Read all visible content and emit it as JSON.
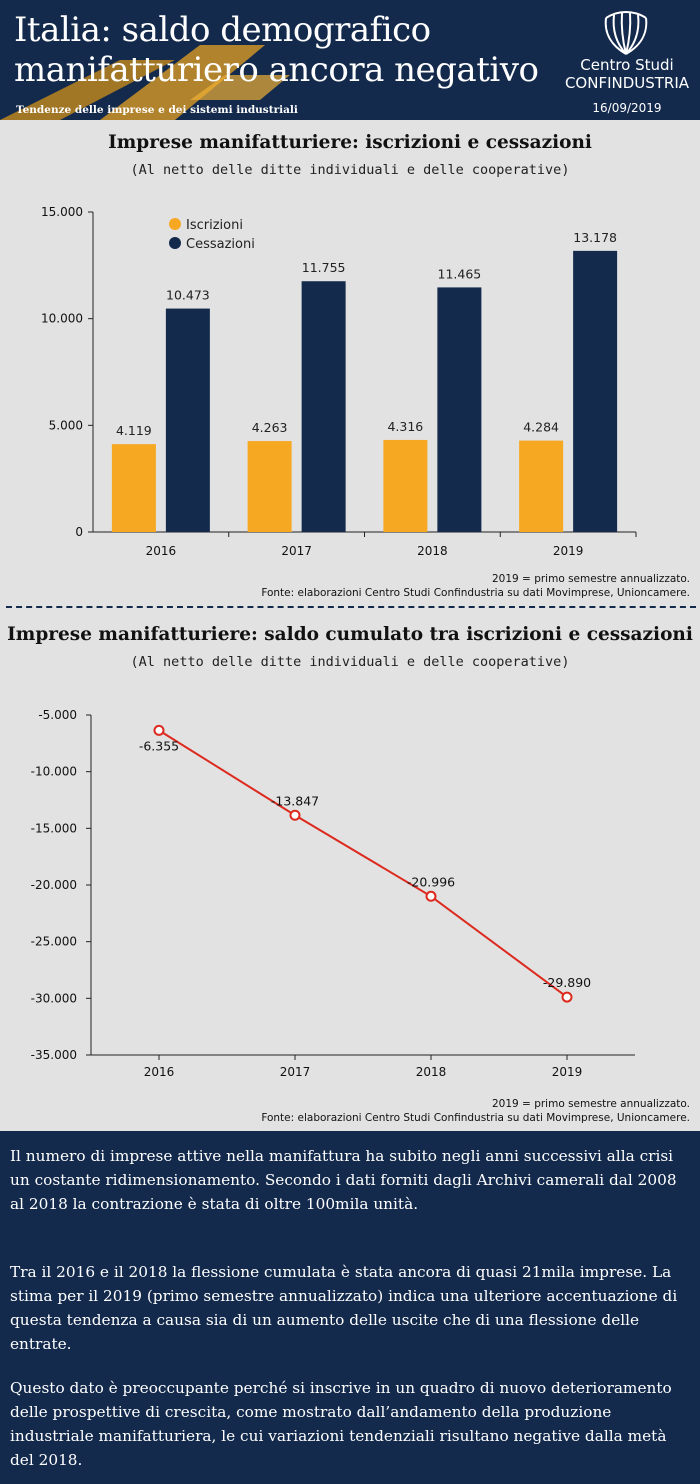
{
  "header": {
    "title": "Italia: saldo demografico manifatturiero ancora negativo",
    "subtitle": "Tendenze delle imprese e dei sistemi industriali",
    "logo_line1": "Centro Studi",
    "logo_line2": "CONFINDUSTRIA",
    "date": "16/09/2019"
  },
  "colors": {
    "navy": "#132a4d",
    "orange": "#f6a823",
    "line_red": "#dc2a1e",
    "background": "#e2e2e2"
  },
  "icons": {
    "logo": "confindustria-shell-icon"
  },
  "chart1": {
    "title": "Imprese manifatturiere: iscrizioni e cessazioni",
    "subtitle": "(Al netto delle ditte individuali e delle cooperative)",
    "note_line1": "2019 = primo semestre annualizzato.",
    "note_line2": "Fonte: elaborazioni Centro Studi Confindustria su dati Movimprese, Unioncamere."
  },
  "chart2": {
    "title": "Imprese manifatturiere: saldo cumulato tra iscrizioni e cessazioni",
    "subtitle": "(Al netto delle ditte individuali e delle cooperative)",
    "note_line1": "2019 = primo semestre annualizzato.",
    "note_line2": "Fonte: elaborazioni Centro Studi Confindustria su dati Movimprese, Unioncamere."
  },
  "chart_data": [
    {
      "type": "bar",
      "categories": [
        "2016",
        "2017",
        "2018",
        "2019"
      ],
      "series": [
        {
          "name": "Iscrizioni",
          "values": [
            4119,
            4263,
            4316,
            4284
          ],
          "labels": [
            "4.119",
            "4.263",
            "4.316",
            "4.284"
          ],
          "color": "#f6a823"
        },
        {
          "name": "Cessazioni",
          "values": [
            10473,
            11755,
            11465,
            13178
          ],
          "labels": [
            "10.473",
            "11.755",
            "11.465",
            "13.178"
          ],
          "color": "#132a4d"
        }
      ],
      "ylim": [
        0,
        15000
      ],
      "yticks": [
        0,
        5000,
        10000,
        15000
      ],
      "ytick_labels": [
        "0",
        "5.000",
        "10.000",
        "15.000"
      ],
      "legend_position": "top-left",
      "grid": false
    },
    {
      "type": "line",
      "x": [
        "2016",
        "2017",
        "2018",
        "2019"
      ],
      "series": [
        {
          "values": [
            -6355,
            -13847,
            -20996,
            -29890
          ],
          "labels": [
            "-6.355",
            "-13.847",
            "-20.996",
            "-29.890"
          ],
          "color": "#dc2a1e"
        }
      ],
      "ylim": [
        -35000,
        -5000
      ],
      "yticks": [
        -5000,
        -10000,
        -15000,
        -20000,
        -25000,
        -30000,
        -35000
      ],
      "ytick_labels": [
        "-5.000",
        "-10.000",
        "-15.000",
        "-20.000",
        "-25.000",
        "-30.000",
        "-35.000"
      ],
      "grid": false
    }
  ],
  "text": {
    "paragraphs": [
      "Il numero di imprese attive nella manifattura ha subito negli anni successivi alla crisi un costante ridimensionamento. Secondo i dati forniti dagli Archivi camerali dal 2008 al 2018 la contrazione è stata di oltre 100mila unità.",
      "Tra il 2016 e il 2018 la flessione cumulata è stata ancora di quasi 21mila imprese. La stima per il 2019 (primo semestre annualizzato) indica una ulteriore accentuazione di questa tendenza a causa sia di un aumento delle uscite che di una flessione delle entrate.",
      "Questo dato è preoccupante perché si inscrive in un quadro di nuovo deterioramento delle prospettive di crescita, come mostrato dall’andamento della produzione industriale manifatturiera, le cui variazioni tendenziali risultano negative dalla metà del 2018."
    ]
  }
}
